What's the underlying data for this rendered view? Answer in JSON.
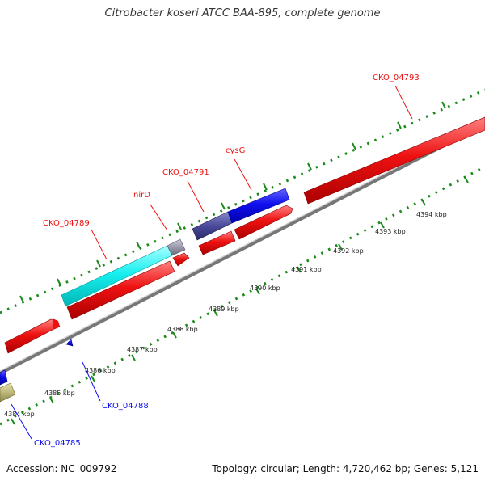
{
  "title": "Citrobacter koseri ATCC BAA-895, complete genome",
  "footer": {
    "accession": "Accession: NC_009792",
    "summary": "Topology: circular; Length: 4,720,462 bp; Genes: 5,121"
  },
  "colors": {
    "forward_gene": "#ff2020",
    "reverse_gene": "#1010ee",
    "cyan_feature": "#19f0f0",
    "navy_feature": "#4a4a9a",
    "khaki_feature": "#bdb87a",
    "grey_feature": "#9999aa",
    "forward_label": "#ee1111",
    "reverse_label": "#1111ee",
    "tick": "#1a8a1a",
    "backbone": "#777777"
  },
  "gene_labels": {
    "forward": [
      "CKO_04789",
      "nirD",
      "CKO_04791",
      "cysG",
      "CKO_04793"
    ],
    "reverse": [
      "CKO_04788",
      "CKO_04785"
    ]
  },
  "scale_labels": [
    "4384 kbp",
    "4385 kbp",
    "4386 kbp",
    "4387 kbp",
    "4388 kbp",
    "4389 kbp",
    "4390 kbp",
    "4391 kbp",
    "4392 kbp",
    "4393 kbp",
    "4394 kbp"
  ]
}
